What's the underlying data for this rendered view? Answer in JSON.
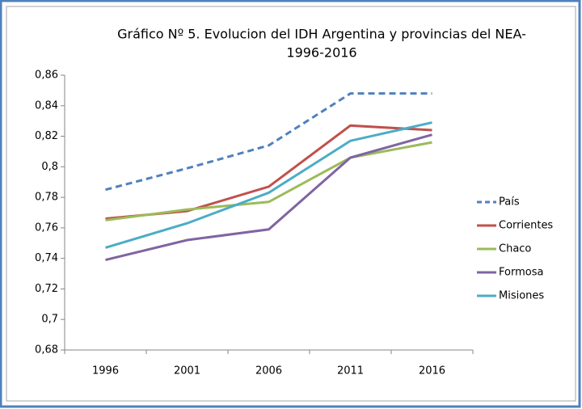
{
  "chart_data": {
    "type": "line",
    "title": [
      "Gráfico Nº 5. Evolucion del IDH Argentina y provincias del NEA-",
      "1996-2016"
    ],
    "categories": [
      "1996",
      "2001",
      "2006",
      "2011",
      "2016"
    ],
    "series": [
      {
        "name": "País",
        "color": "#4f81bd",
        "dashed": true,
        "values": [
          0.785,
          0.799,
          0.814,
          0.848,
          0.848
        ]
      },
      {
        "name": "Corrientes",
        "color": "#c0504d",
        "values": [
          0.766,
          0.771,
          0.787,
          0.827,
          0.824
        ]
      },
      {
        "name": "Chaco",
        "color": "#9bbb59",
        "values": [
          0.765,
          0.772,
          0.777,
          0.806,
          0.816
        ]
      },
      {
        "name": "Formosa",
        "color": "#8064a2",
        "values": [
          0.739,
          0.752,
          0.759,
          0.806,
          0.821
        ]
      },
      {
        "name": "Misiones",
        "color": "#4bacc6",
        "values": [
          0.747,
          0.763,
          0.783,
          0.817,
          0.829
        ]
      }
    ],
    "ylim": [
      0.68,
      0.86
    ],
    "yticks": [
      {
        "value": 0.68,
        "label": "0,68"
      },
      {
        "value": 0.7,
        "label": "0,7"
      },
      {
        "value": 0.72,
        "label": "0,72"
      },
      {
        "value": 0.74,
        "label": "0,74"
      },
      {
        "value": 0.76,
        "label": "0,76"
      },
      {
        "value": 0.78,
        "label": "0,78"
      },
      {
        "value": 0.8,
        "label": "0,8"
      },
      {
        "value": 0.82,
        "label": "0,82"
      },
      {
        "value": 0.84,
        "label": "0,84"
      },
      {
        "value": 0.86,
        "label": "0,86"
      }
    ],
    "grid": false,
    "legend": "right"
  }
}
